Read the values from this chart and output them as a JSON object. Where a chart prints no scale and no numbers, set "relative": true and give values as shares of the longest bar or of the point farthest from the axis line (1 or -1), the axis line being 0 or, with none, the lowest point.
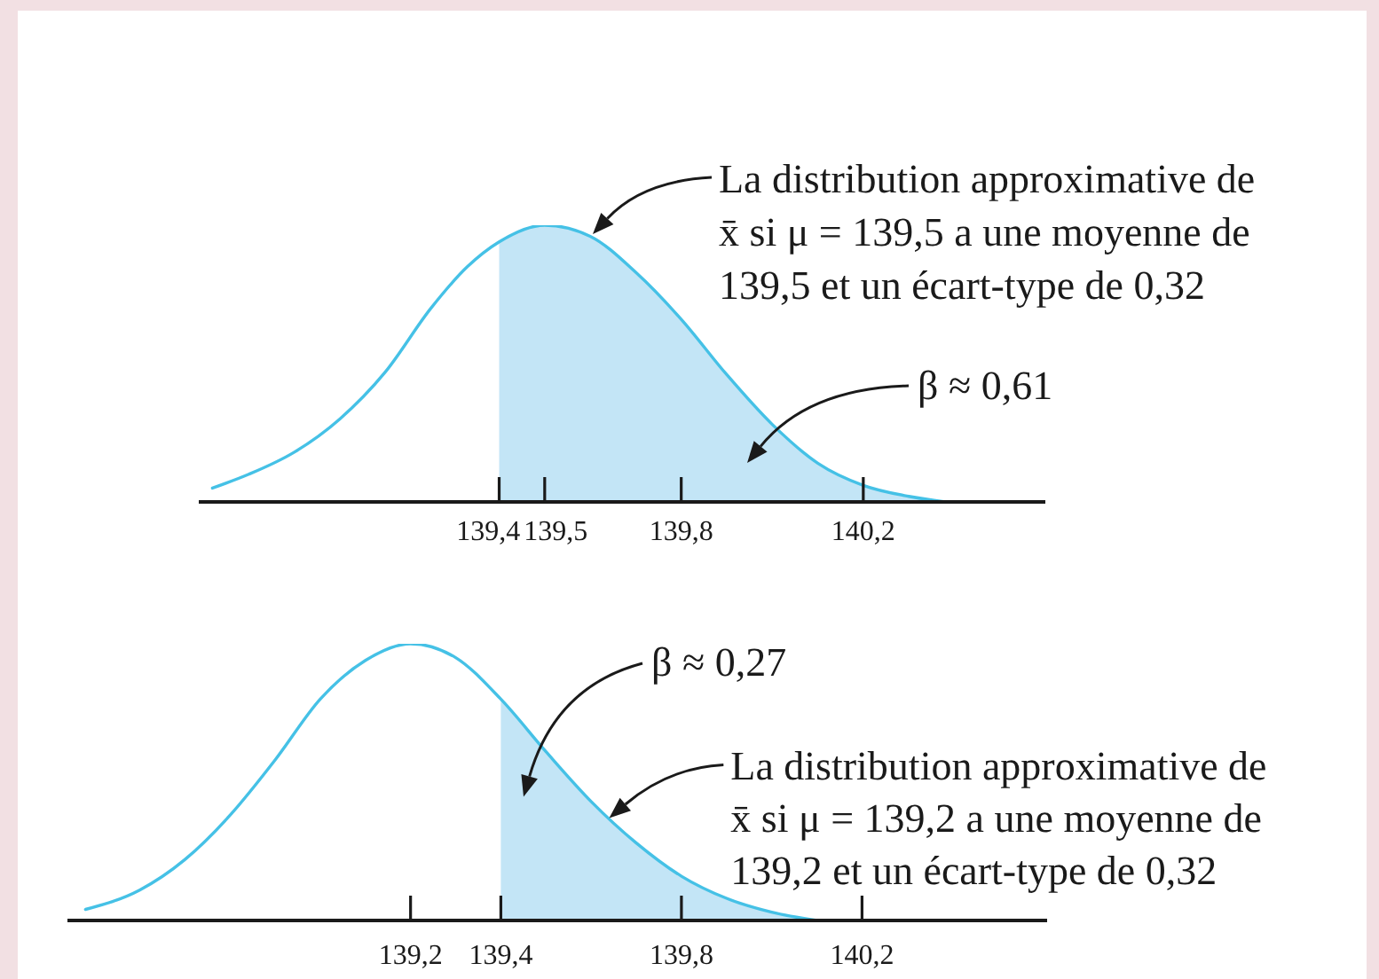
{
  "chart_data": [
    {
      "type": "line",
      "relative": true,
      "x": [
        138.77,
        138.85,
        138.95,
        139.05,
        139.15,
        139.25,
        139.33,
        139.4,
        139.5,
        139.6,
        139.7,
        139.8,
        139.9,
        140.0,
        140.1,
        140.2,
        140.3,
        140.38
      ],
      "series": [
        {
          "type": "area",
          "color": "#c3e5f6",
          "values": [
            null,
            null,
            null,
            null,
            null,
            null,
            null,
            0.94,
            1,
            0.96,
            0.83,
            0.66,
            0.46,
            0.28,
            0.14,
            0.06,
            0.02,
            0
          ]
        },
        {
          "color": "#45c1e6",
          "values": [
            0.05,
            0.1,
            0.18,
            0.3,
            0.47,
            0.7,
            0.85,
            0.94,
            1,
            0.96,
            0.83,
            0.66,
            0.46,
            0.28,
            0.14,
            0.06,
            0.02,
            0
          ]
        }
      ],
      "xlim": [
        138.74,
        140.6
      ],
      "xticks": [
        {
          "value": 139.4,
          "label": "139,4"
        },
        {
          "value": 139.5,
          "label": "139,5"
        },
        {
          "value": 139.8,
          "label": "139,8"
        },
        {
          "value": 140.2,
          "label": "140,2"
        }
      ],
      "tick_labels": "x",
      "marker": "none",
      "annotations": [
        "La distribution approximative de\nx̄ si μ = 139,5 a une moyenne de\n139,5 et un écart-type de 0,32",
        "β ≈ 0,61"
      ]
    },
    {
      "type": "line",
      "relative": true,
      "x": [
        138.48,
        138.6,
        138.7,
        138.8,
        138.9,
        139.0,
        139.1,
        139.2,
        139.3,
        139.4,
        139.5,
        139.6,
        139.7,
        139.8,
        139.9,
        140.0,
        140.1
      ],
      "series": [
        {
          "type": "area",
          "color": "#c3e5f6",
          "values": [
            null,
            null,
            null,
            null,
            null,
            null,
            null,
            null,
            null,
            0.8,
            0.61,
            0.43,
            0.28,
            0.16,
            0.08,
            0.03,
            0
          ]
        },
        {
          "color": "#45c1e6",
          "values": [
            0.04,
            0.11,
            0.22,
            0.38,
            0.58,
            0.8,
            0.94,
            1,
            0.95,
            0.8,
            0.61,
            0.43,
            0.28,
            0.16,
            0.08,
            0.03,
            0
          ]
        }
      ],
      "xlim": [
        138.44,
        140.61
      ],
      "xticks": [
        {
          "value": 139.2,
          "label": "139,2"
        },
        {
          "value": 139.4,
          "label": "139,4"
        },
        {
          "value": 139.8,
          "label": "139,8"
        },
        {
          "value": 140.2,
          "label": "140,2"
        }
      ],
      "tick_labels": "x",
      "marker": "none",
      "annotations": [
        "β ≈ 0,27",
        {
          "text": "La distribution approximative de\nx̄ si μ = 139,2 a une moyenne de\n139,2 et un écart-type de 0,32",
          "x": 139.64,
          "y": 0.37
        }
      ]
    }
  ]
}
